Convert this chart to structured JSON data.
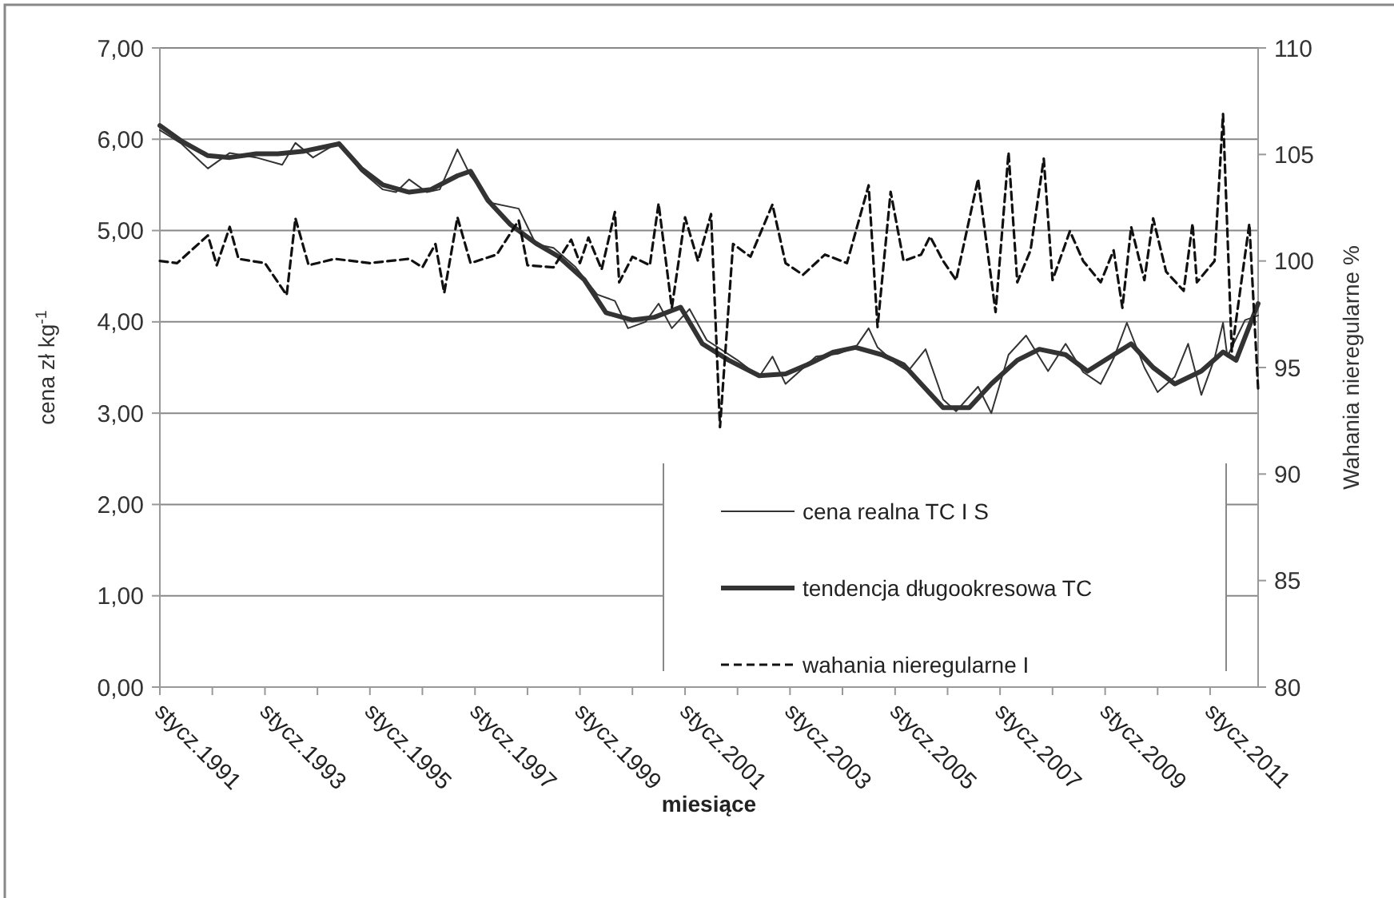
{
  "chart_data": {
    "type": "line",
    "xlabel": "miesiące",
    "ylabel": "cena zł kg$^{-1}$",
    "y2label": "Wahania nieregularne %",
    "xlim": [
      "1991-01",
      "2011-12"
    ],
    "xticks": [
      {
        "value": "1991-01",
        "label": "stycz.1991"
      },
      {
        "value": "1992-01",
        "label": null
      },
      {
        "value": "1993-01",
        "label": "stycz.1993"
      },
      {
        "value": "1994-01",
        "label": null
      },
      {
        "value": "1995-01",
        "label": "stycz.1995"
      },
      {
        "value": "1996-01",
        "label": null
      },
      {
        "value": "1997-01",
        "label": "stycz.1997"
      },
      {
        "value": "1998-01",
        "label": null
      },
      {
        "value": "1999-01",
        "label": "stycz.1999"
      },
      {
        "value": "2000-01",
        "label": null
      },
      {
        "value": "2001-01",
        "label": "stycz.2001"
      },
      {
        "value": "2002-01",
        "label": null
      },
      {
        "value": "2003-01",
        "label": "stycz.2003"
      },
      {
        "value": "2004-01",
        "label": null
      },
      {
        "value": "2005-01",
        "label": "stycz.2005"
      },
      {
        "value": "2006-01",
        "label": null
      },
      {
        "value": "2007-01",
        "label": "stycz.2007"
      },
      {
        "value": "2008-01",
        "label": null
      },
      {
        "value": "2009-01",
        "label": "stycz.2009"
      },
      {
        "value": "2010-01",
        "label": null
      },
      {
        "value": "2011-01",
        "label": "stycz.2011"
      }
    ],
    "ylim": [
      0,
      7
    ],
    "yticks": [
      {
        "value": 0,
        "label": "0,00"
      },
      {
        "value": 1,
        "label": "1,00"
      },
      {
        "value": 2,
        "label": "2,00"
      },
      {
        "value": 3,
        "label": "3,00"
      },
      {
        "value": 4,
        "label": "4,00"
      },
      {
        "value": 5,
        "label": "5,00"
      },
      {
        "value": 6,
        "label": "6,00"
      },
      {
        "value": 7,
        "label": "7,00"
      }
    ],
    "y2lim": [
      80,
      110
    ],
    "y2ticks": [
      80,
      85,
      90,
      95,
      100,
      105,
      110
    ],
    "grid": "y",
    "legend": "bottom",
    "marker": "none",
    "series": [
      {
        "name": "cena realna TC I S",
        "color": "#333333",
        "line_style": "solid",
        "x": [
          "1991-01",
          "1991-06",
          "1991-12",
          "1992-05",
          "1992-11",
          "1993-05",
          "1993-08",
          "1993-12",
          "1994-06",
          "1994-11",
          "1995-04",
          "1995-07",
          "1995-10",
          "1996-02",
          "1996-05",
          "1996-09",
          "1996-12",
          "1997-05",
          "1997-11",
          "1998-03",
          "1998-07",
          "1998-12",
          "1999-05",
          "1999-09",
          "1999-12",
          "2000-04",
          "2000-07",
          "2000-10",
          "2001-02",
          "2001-06",
          "2002-01",
          "2002-06",
          "2002-09",
          "2002-12",
          "2003-07",
          "2003-12",
          "2004-04",
          "2004-07",
          "2004-09",
          "2005-01",
          "2005-04",
          "2005-08",
          "2005-12",
          "2006-03",
          "2006-08",
          "2006-11",
          "2007-03",
          "2007-07",
          "2007-12",
          "2008-04",
          "2008-08",
          "2008-12",
          "2009-03",
          "2009-06",
          "2009-10",
          "2010-01",
          "2010-05",
          "2010-08",
          "2010-11",
          "2011-02",
          "2011-04",
          "2011-05",
          "2011-09",
          "2011-12"
        ],
        "values": [
          6.1,
          5.95,
          5.68,
          5.85,
          5.8,
          5.72,
          5.96,
          5.8,
          5.97,
          5.65,
          5.45,
          5.42,
          5.56,
          5.42,
          5.45,
          5.89,
          5.6,
          5.3,
          5.24,
          4.85,
          4.81,
          4.6,
          4.3,
          4.23,
          3.93,
          4.0,
          4.2,
          3.93,
          4.14,
          3.8,
          3.58,
          3.4,
          3.62,
          3.32,
          3.62,
          3.65,
          3.72,
          3.93,
          3.72,
          3.55,
          3.46,
          3.7,
          3.15,
          3.02,
          3.29,
          3.0,
          3.64,
          3.85,
          3.46,
          3.76,
          3.45,
          3.32,
          3.6,
          3.99,
          3.5,
          3.23,
          3.4,
          3.76,
          3.2,
          3.6,
          3.99,
          3.62,
          4.02,
          4.07
        ]
      },
      {
        "name": "tendencja długookresowa TC",
        "color": "#333333",
        "line_style": "solid",
        "x": [
          "1991-01",
          "1991-06",
          "1991-12",
          "1992-05",
          "1992-11",
          "1993-04",
          "1993-10",
          "1994-06",
          "1994-11",
          "1995-04",
          "1995-10",
          "1996-03",
          "1996-09",
          "1996-12",
          "1997-04",
          "1997-09",
          "1998-03",
          "1998-08",
          "1999-02",
          "1999-07",
          "2000-01",
          "2000-06",
          "2000-12",
          "2001-05",
          "2001-11",
          "2002-06",
          "2002-12",
          "2003-05",
          "2003-11",
          "2004-04",
          "2004-10",
          "2005-03",
          "2005-07",
          "2005-12",
          "2006-06",
          "2006-11",
          "2007-05",
          "2007-10",
          "2008-04",
          "2008-09",
          "2009-03",
          "2009-07",
          "2009-12",
          "2010-05",
          "2010-11",
          "2011-04",
          "2011-07",
          "2011-12"
        ],
        "values": [
          6.15,
          5.98,
          5.82,
          5.8,
          5.84,
          5.84,
          5.87,
          5.95,
          5.68,
          5.5,
          5.42,
          5.45,
          5.6,
          5.65,
          5.33,
          5.07,
          4.86,
          4.72,
          4.46,
          4.1,
          4.02,
          4.05,
          4.16,
          3.76,
          3.58,
          3.41,
          3.43,
          3.53,
          3.67,
          3.72,
          3.64,
          3.53,
          3.32,
          3.06,
          3.06,
          3.32,
          3.58,
          3.7,
          3.64,
          3.46,
          3.64,
          3.76,
          3.5,
          3.32,
          3.46,
          3.67,
          3.58,
          4.2
        ]
      },
      {
        "name": "wahania nieregularne I",
        "color": "#111111",
        "line_style": "dashed",
        "axis": "y2",
        "x": [
          "1991-01",
          "1991-05",
          "1991-12",
          "1992-02",
          "1992-05",
          "1992-07",
          "1993-01",
          "1993-06",
          "1993-08",
          "1993-11",
          "1994-05",
          "1995-01",
          "1995-10",
          "1996-01",
          "1996-04",
          "1996-06",
          "1996-09",
          "1996-12",
          "1997-06",
          "1997-11",
          "1998-01",
          "1998-07",
          "1998-11",
          "1999-01",
          "1999-03",
          "1999-06",
          "1999-09",
          "1999-10",
          "2000-01",
          "2000-05",
          "2000-07",
          "2000-10",
          "2001-01",
          "2001-04",
          "2001-07",
          "2001-09",
          "2001-12",
          "2002-04",
          "2002-09",
          "2002-12",
          "2003-04",
          "2003-09",
          "2004-02",
          "2004-07",
          "2004-09",
          "2004-12",
          "2005-03",
          "2005-07",
          "2005-09",
          "2005-12",
          "2006-03",
          "2006-08",
          "2006-12",
          "2007-03",
          "2007-05",
          "2007-08",
          "2007-11",
          "2008-01",
          "2008-05",
          "2008-08",
          "2008-12",
          "2009-03",
          "2009-05",
          "2009-07",
          "2009-10",
          "2009-12",
          "2010-03",
          "2010-07",
          "2010-09",
          "2010-10",
          "2011-02",
          "2011-04",
          "2011-06",
          "2011-10",
          "2011-12"
        ],
        "values": [
          100,
          99.9,
          101.2,
          99.8,
          101.6,
          100.1,
          99.9,
          98.4,
          102.0,
          99.8,
          100.1,
          99.9,
          100.1,
          99.7,
          100.8,
          98.5,
          102.05,
          99.9,
          100.3,
          101.9,
          99.8,
          99.7,
          101.0,
          99.9,
          101.1,
          99.6,
          102.3,
          99.0,
          100.2,
          99.8,
          102.7,
          97.8,
          102.05,
          100.0,
          102.2,
          92.2,
          100.8,
          100.2,
          102.65,
          99.9,
          99.35,
          100.3,
          99.9,
          103.55,
          96.9,
          103.25,
          100.0,
          100.3,
          101.15,
          100.0,
          99.1,
          103.85,
          97.6,
          105.1,
          99.0,
          100.5,
          104.8,
          99.1,
          101.4,
          100.0,
          99.0,
          100.5,
          97.8,
          101.6,
          99.1,
          102.0,
          99.5,
          98.6,
          101.75,
          99.0,
          100.0,
          106.9,
          95.75,
          101.75,
          94.0
        ]
      }
    ]
  }
}
